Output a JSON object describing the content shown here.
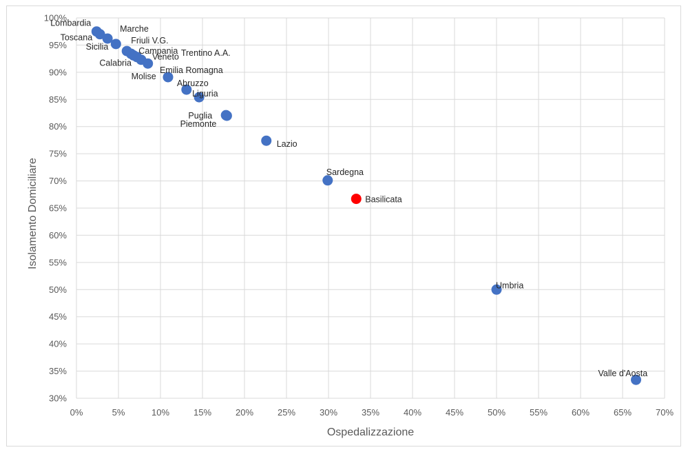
{
  "chart_data": {
    "type": "scatter",
    "title": "",
    "xlabel": "Ospedalizzazione",
    "ylabel": "Isolamento Domiciliare",
    "xlim": [
      0,
      0.7
    ],
    "ylim": [
      0.3,
      1.0
    ],
    "x_ticks": [
      "0%",
      "5%",
      "10%",
      "15%",
      "20%",
      "25%",
      "30%",
      "35%",
      "40%",
      "45%",
      "50%",
      "55%",
      "60%",
      "65%",
      "70%"
    ],
    "y_ticks": [
      "30%",
      "35%",
      "40%",
      "45%",
      "50%",
      "55%",
      "60%",
      "65%",
      "70%",
      "75%",
      "80%",
      "85%",
      "90%",
      "95%",
      "100%"
    ],
    "grid": true,
    "legend": "none",
    "default_color": "#4472c4",
    "highlight_color": "#ff0000",
    "points": [
      {
        "label": "Lombardia",
        "x": 0.024,
        "y": 0.975
      },
      {
        "label": "Toscana",
        "x": 0.028,
        "y": 0.97
      },
      {
        "label": "Marche",
        "x": 0.037,
        "y": 0.962
      },
      {
        "label": "Sicilia",
        "x": 0.047,
        "y": 0.952
      },
      {
        "label": "Friuli V.G.",
        "x": 0.06,
        "y": 0.939
      },
      {
        "label": "Campania",
        "x": 0.065,
        "y": 0.934
      },
      {
        "label": "Calabria",
        "x": 0.068,
        "y": 0.931
      },
      {
        "label": "Trentino A.A.",
        "x": 0.072,
        "y": 0.928
      },
      {
        "label": "Veneto",
        "x": 0.077,
        "y": 0.923
      },
      {
        "label": "Molise",
        "x": 0.085,
        "y": 0.916
      },
      {
        "label": "Emilia Romagna",
        "x": 0.109,
        "y": 0.891
      },
      {
        "label": "Abruzzo",
        "x": 0.131,
        "y": 0.868
      },
      {
        "label": "Liguria",
        "x": 0.146,
        "y": 0.854
      },
      {
        "label": "Puglia",
        "x": 0.178,
        "y": 0.821
      },
      {
        "label": "Piemonte",
        "x": 0.179,
        "y": 0.82
      },
      {
        "label": "Lazio",
        "x": 0.226,
        "y": 0.774
      },
      {
        "label": "Sardegna",
        "x": 0.299,
        "y": 0.701
      },
      {
        "label": "Basilicata",
        "x": 0.333,
        "y": 0.667,
        "highlight": true
      },
      {
        "label": "Umbria",
        "x": 0.5,
        "y": 0.5
      },
      {
        "label": "Valle d'Aosta",
        "x": 0.666,
        "y": 0.334
      }
    ]
  }
}
